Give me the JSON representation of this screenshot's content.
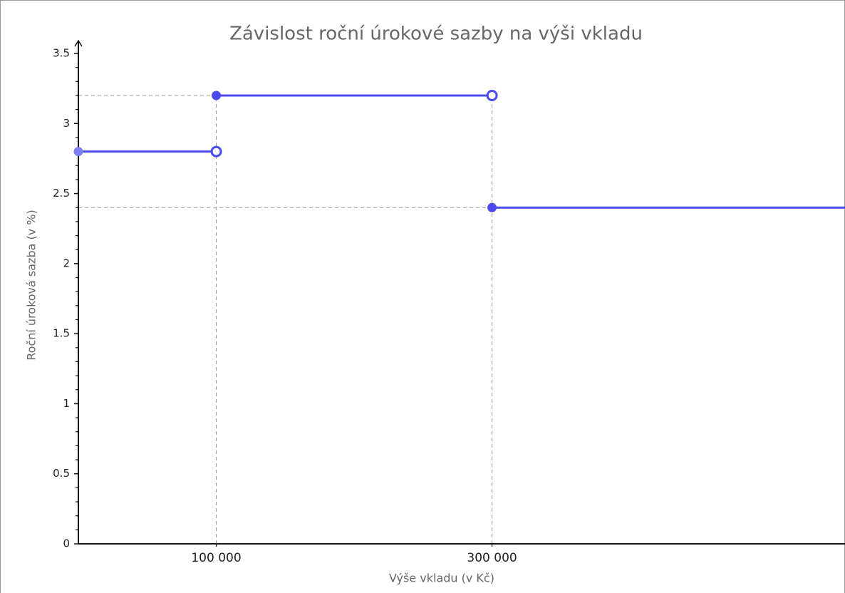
{
  "chart_data": {
    "type": "step",
    "title": "Závislost roční úrokové sazby na výši vkladu",
    "x_label": "Výše vkladu (v Kč)",
    "y_label": "Roční úroková sazba (v %)",
    "xlim": [
      0,
      556000
    ],
    "ylim": [
      0,
      3.5
    ],
    "xticks": [
      {
        "value": 100000,
        "label": "100 000"
      },
      {
        "value": 300000,
        "label": "300 000"
      }
    ],
    "yticks": [
      0,
      0.5,
      1,
      1.5,
      2,
      2.5,
      3,
      3.5
    ],
    "yminorticks": [
      0.1,
      0.2,
      0.3,
      0.4,
      0.6,
      0.7,
      0.8,
      0.9,
      1.1,
      1.2,
      1.3,
      1.4,
      1.6,
      1.7,
      1.8,
      1.9,
      2.1,
      2.2,
      2.3,
      2.4,
      2.6,
      2.7,
      2.8,
      2.9,
      3.1,
      3.2,
      3.3,
      3.4
    ],
    "color": "#4a4aef",
    "segments": [
      {
        "x_start": 0,
        "x_end": 100000,
        "value": 2.8,
        "start": "closed",
        "end": "open",
        "start_color": "#7f7ff2"
      },
      {
        "x_start": 100000,
        "x_end": 300000,
        "value": 3.2,
        "start": "closed",
        "end": "open"
      },
      {
        "x_start": 300000,
        "x_end": null,
        "value": 2.4,
        "start": "closed"
      }
    ]
  }
}
